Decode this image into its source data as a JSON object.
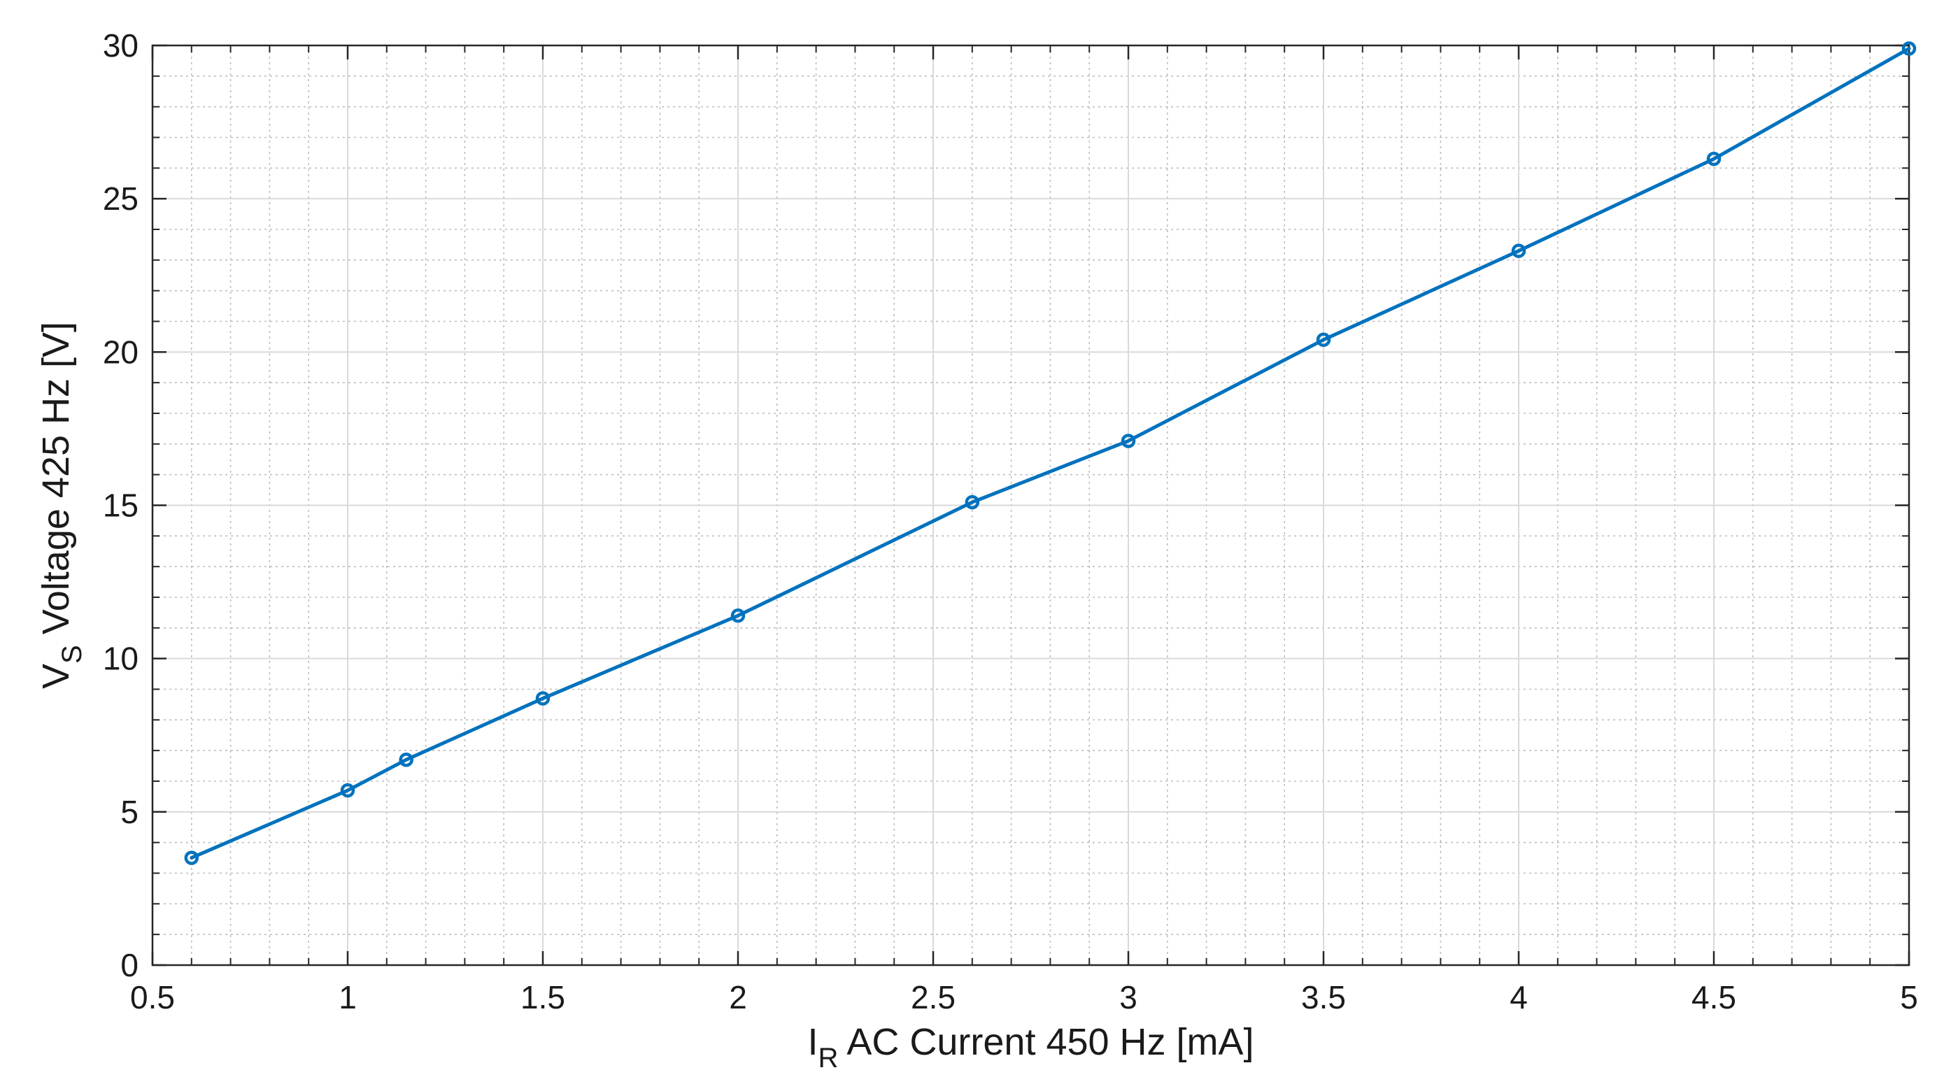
{
  "chart_data": {
    "type": "line",
    "title": "",
    "xlabel": {
      "symbol": "I",
      "subscript": "R",
      "text": " AC Current 450 Hz [mA]"
    },
    "ylabel": {
      "symbol": "V",
      "subscript": "S",
      "text": " Voltage 425 Hz [V]"
    },
    "xlim": [
      0.5,
      5
    ],
    "ylim": [
      0,
      30
    ],
    "xticks": [
      0.5,
      1,
      1.5,
      2,
      2.5,
      3,
      3.5,
      4,
      4.5,
      5
    ],
    "xtick_labels": [
      "0.5",
      "1",
      "1.5",
      "2",
      "2.5",
      "3",
      "3.5",
      "4",
      "4.5",
      "5"
    ],
    "yticks": [
      0,
      5,
      10,
      15,
      20,
      25,
      30
    ],
    "ytick_labels": [
      "0",
      "5",
      "10",
      "15",
      "20",
      "25",
      "30"
    ],
    "grid": true,
    "minor_grid": true,
    "legend": "none",
    "series": [
      {
        "color": "#0072BD",
        "marker": "circle",
        "x": [
          0.6,
          1.0,
          1.15,
          1.5,
          2.0,
          2.6,
          3.0,
          3.5,
          4.0,
          4.5,
          5.0
        ],
        "y": [
          3.5,
          5.7,
          6.7,
          8.7,
          11.4,
          15.1,
          17.1,
          20.4,
          23.3,
          26.3,
          29.9
        ]
      }
    ]
  }
}
